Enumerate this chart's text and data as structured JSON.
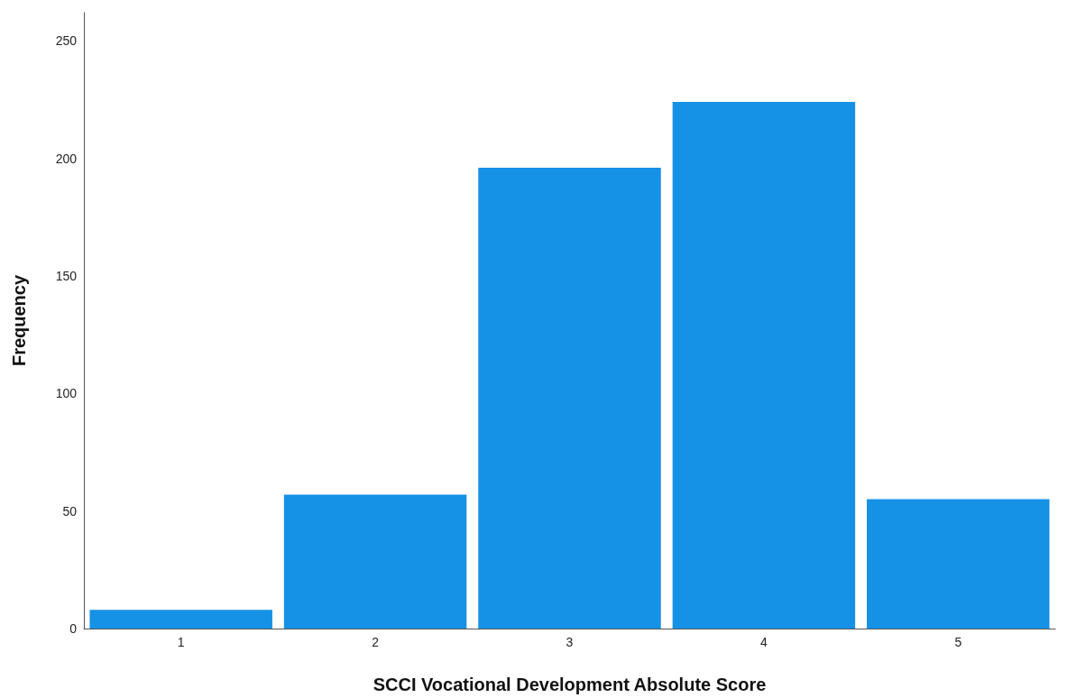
{
  "chart_data": {
    "type": "bar",
    "xlabel": "SCCI Vocational Development Absolute Score",
    "ylabel": "Frequency",
    "categories": [
      "1",
      "2",
      "3",
      "4",
      "5"
    ],
    "values": [
      8,
      57,
      196,
      224,
      55
    ],
    "color": "#1591e6",
    "ylim": [
      0,
      262
    ],
    "yticks": [
      0,
      50,
      100,
      150,
      200,
      250
    ],
    "grid": false
  }
}
